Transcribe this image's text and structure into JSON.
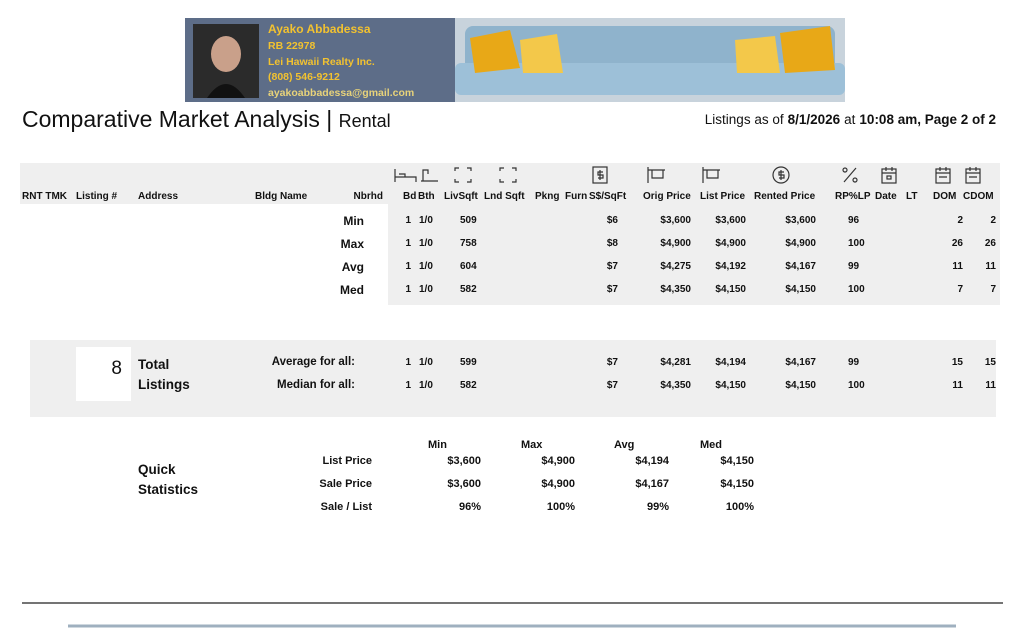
{
  "header": {
    "agent_name": "Ayako Abbadessa",
    "license": "RB 22978",
    "company": "Lei Hawaii Realty Inc.",
    "phone": "(808) 546-9212",
    "email": "ayakoabbadessa@gmail.com"
  },
  "title": "Comparative Market Analysis",
  "title_separator": "|",
  "subtitle": "Rental",
  "listings_info": {
    "prefix": "Listings as of",
    "date": "8/1/2026",
    "at": "at",
    "time_page": "10:08 am, Page 2 of 2"
  },
  "columns": [
    "RNT TMK",
    "Listing #",
    "Address",
    "Bldg Name",
    "Nbrhd",
    "Bd",
    "Bth",
    "LivSqft",
    "Lnd Sqft",
    "Pkng",
    "Furn",
    "S$/SqFt",
    "Orig Price",
    "List Price",
    "Rented Price",
    "RP%LP",
    "Date",
    "LT",
    "DOM",
    "CDOM"
  ],
  "summary_rows": [
    {
      "label": "Min",
      "values": [
        "1",
        "1/0",
        "509",
        "$6",
        "$3,600",
        "$3,600",
        "$3,600",
        "96",
        "2",
        "2"
      ]
    },
    {
      "label": "Max",
      "values": [
        "1",
        "1/0",
        "758",
        "$8",
        "$4,900",
        "$4,900",
        "$4,900",
        "100",
        "26",
        "26"
      ]
    },
    {
      "label": "Avg",
      "values": [
        "1",
        "1/0",
        "604",
        "$7",
        "$4,275",
        "$4,192",
        "$4,167",
        "99",
        "11",
        "11"
      ]
    },
    {
      "label": "Med",
      "values": [
        "1",
        "1/0",
        "582",
        "$7",
        "$4,350",
        "$4,150",
        "$4,150",
        "100",
        "7",
        "7"
      ]
    }
  ],
  "totals": {
    "count": "8",
    "label_line1": "Total",
    "label_line2": "Listings",
    "rows": [
      {
        "label": "Average for all:",
        "values": [
          "1",
          "1/0",
          "599",
          "$7",
          "$4,281",
          "$4,194",
          "$4,167",
          "99",
          "15",
          "15"
        ]
      },
      {
        "label": "Median for all:",
        "values": [
          "1",
          "1/0",
          "582",
          "$7",
          "$4,350",
          "$4,150",
          "$4,150",
          "100",
          "11",
          "11"
        ]
      }
    ]
  },
  "quick_statistics": {
    "title_line1": "Quick",
    "title_line2": "Statistics",
    "headers": [
      "Min",
      "Max",
      "Avg",
      "Med"
    ],
    "rows": [
      {
        "label": "List Price",
        "values": [
          "$3,600",
          "$4,900",
          "$4,194",
          "$4,150"
        ]
      },
      {
        "label": "Sale Price",
        "values": [
          "$3,600",
          "$4,900",
          "$4,167",
          "$4,150"
        ]
      },
      {
        "label": "Sale / List",
        "values": [
          "96%",
          "100%",
          "99%",
          "100%"
        ]
      }
    ]
  }
}
